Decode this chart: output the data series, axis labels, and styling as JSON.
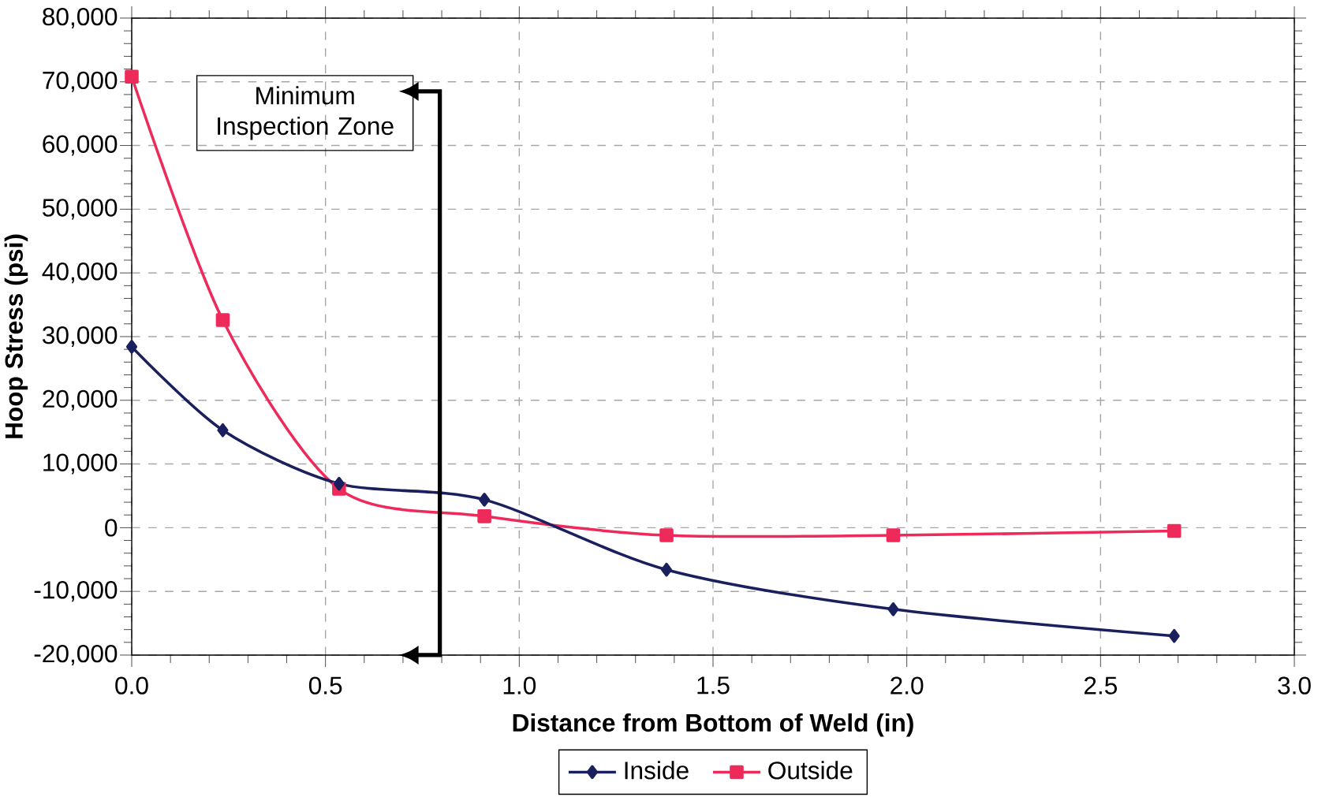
{
  "chart_data": {
    "type": "line",
    "xlabel": "Distance from Bottom of Weld (in)",
    "ylabel": "Hoop Stress (psi)",
    "x": [
      0.0,
      0.235,
      0.535,
      0.91,
      1.38,
      1.965,
      2.69
    ],
    "series": [
      {
        "name": "Inside",
        "color": "#1a1f5e",
        "marker": "diamond",
        "values": [
          28400,
          15300,
          6900,
          4400,
          -6600,
          -12800,
          -17000
        ]
      },
      {
        "name": "Outside",
        "color": "#ee2a5a",
        "marker": "square",
        "values": [
          70800,
          32600,
          6100,
          1800,
          -1200,
          -1200,
          -500
        ]
      }
    ],
    "xlim": [
      0,
      3
    ],
    "ylim": [
      -20000,
      80000
    ],
    "xticks": [
      {
        "value": 0,
        "label": "0.0"
      },
      {
        "value": 0.5,
        "label": "0.5"
      },
      {
        "value": 1,
        "label": "1.0"
      },
      {
        "value": 1.5,
        "label": "1.5"
      },
      {
        "value": 2,
        "label": "2.0"
      },
      {
        "value": 2.5,
        "label": "2.5"
      },
      {
        "value": 3,
        "label": "3.0"
      }
    ],
    "yticks": [
      {
        "value": -20000,
        "label": "-20,000"
      },
      {
        "value": -10000,
        "label": "-10,000"
      },
      {
        "value": 0,
        "label": "0"
      },
      {
        "value": 10000,
        "label": "10,000"
      },
      {
        "value": 20000,
        "label": "20,000"
      },
      {
        "value": 30000,
        "label": "30,000"
      },
      {
        "value": 40000,
        "label": "40,000"
      },
      {
        "value": 50000,
        "label": "50,000"
      },
      {
        "value": 60000,
        "label": "60,000"
      },
      {
        "value": 70000,
        "label": "70,000"
      },
      {
        "value": 80000,
        "label": "80,000"
      }
    ],
    "grid": true,
    "legend": "bottom",
    "line_style": "solid",
    "annotations": [
      "Minimum Inspection Zone"
    ]
  }
}
